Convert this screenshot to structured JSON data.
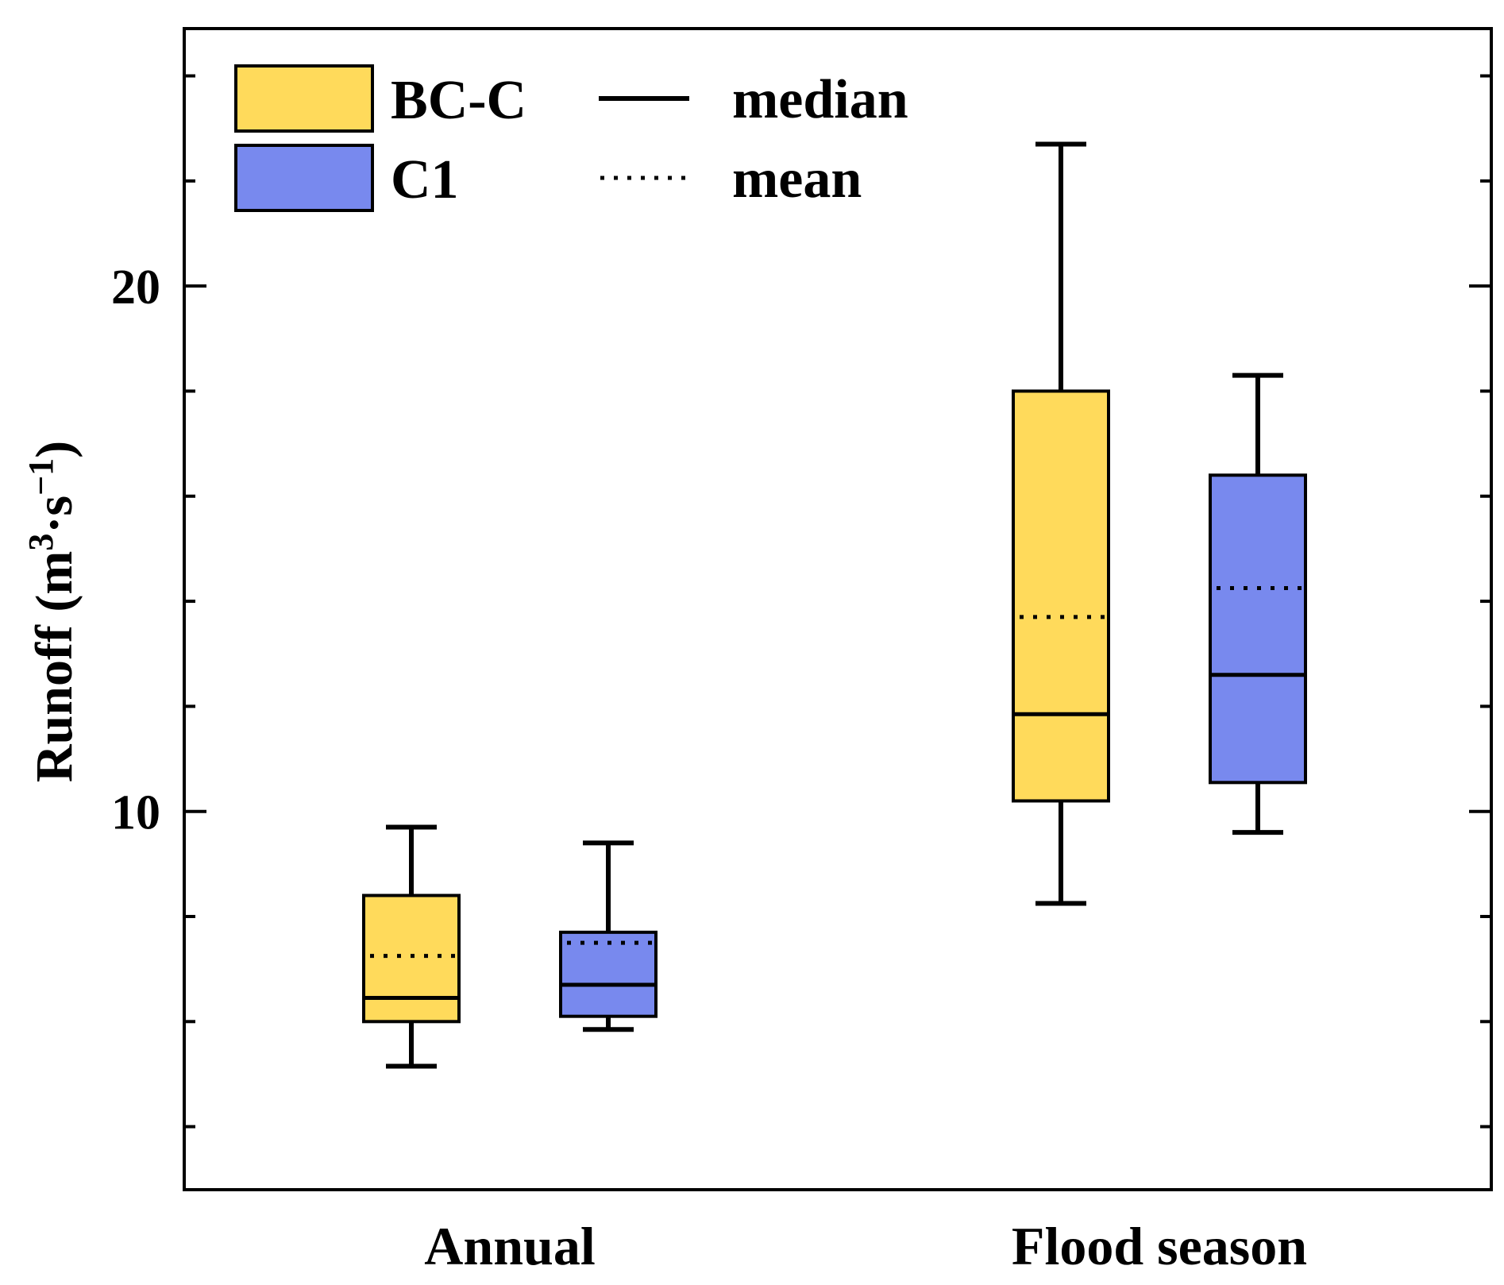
{
  "chart_data": {
    "type": "box",
    "title": "",
    "xlabel": "",
    "ylabel": {
      "main": "Runoff (m",
      "sup1": "3",
      "mid": "·s",
      "sup2": "−1",
      "end": ")"
    },
    "ylim": [
      2.8,
      24.9
    ],
    "y_ticks_major": [
      10,
      20
    ],
    "y_ticks_minor": [
      4,
      6,
      8,
      12,
      14,
      16,
      18,
      22,
      24
    ],
    "categories": [
      "Annual",
      "Flood season"
    ],
    "series": [
      {
        "name": "BC-C",
        "color": "#FFDA5B",
        "boxes": [
          {
            "category": "Annual",
            "whisker_low": 5.15,
            "q1": 6.0,
            "median": 6.45,
            "mean": 7.25,
            "q3": 8.4,
            "whisker_high": 9.7
          },
          {
            "category": "Flood season",
            "whisker_low": 8.25,
            "q1": 10.2,
            "median": 11.85,
            "mean": 13.7,
            "q3": 18.0,
            "whisker_high": 22.7
          }
        ]
      },
      {
        "name": "C1",
        "color": "#7889EE",
        "boxes": [
          {
            "category": "Annual",
            "whisker_low": 5.85,
            "q1": 6.1,
            "median": 6.7,
            "mean": 7.5,
            "q3": 7.7,
            "whisker_high": 9.4
          },
          {
            "category": "Flood season",
            "whisker_low": 9.6,
            "q1": 10.55,
            "median": 12.6,
            "mean": 14.25,
            "q3": 16.4,
            "whisker_high": 18.3
          }
        ]
      }
    ],
    "legend": {
      "position": "top-left",
      "entries": [
        {
          "label": "BC-C",
          "kind": "box",
          "color": "#FFDA5B"
        },
        {
          "label": "C1",
          "kind": "box",
          "color": "#7889EE"
        },
        {
          "label": "median",
          "kind": "solid-line"
        },
        {
          "label": "mean",
          "kind": "dotted-line"
        }
      ]
    },
    "grid": false
  }
}
